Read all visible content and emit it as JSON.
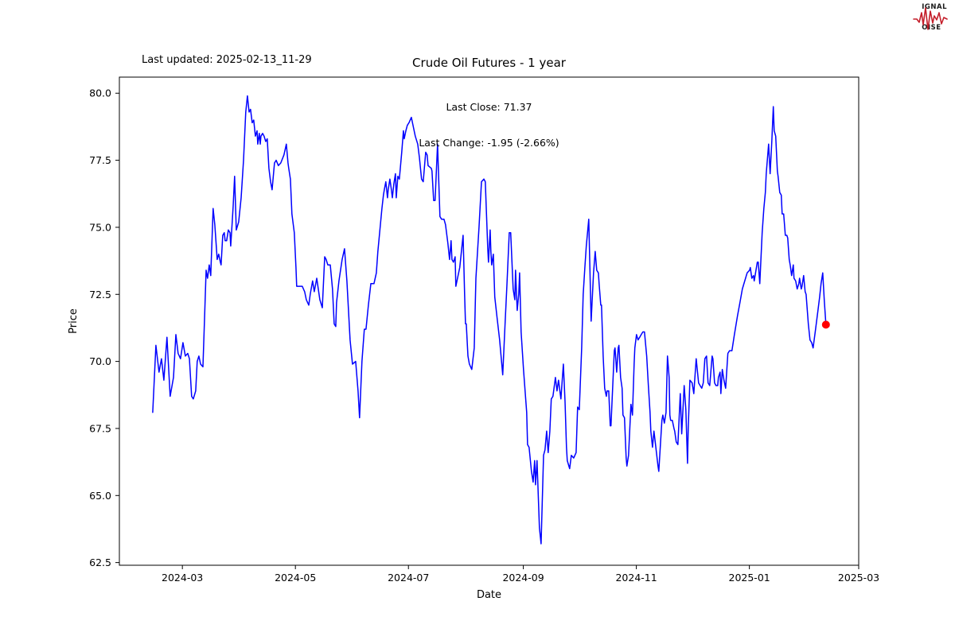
{
  "header": {
    "last_updated": "Last updated: 2025-02-13_11-29",
    "title": "Crude Oil Futures - 1 year",
    "annotation_line1": "Last Close: 71.37",
    "annotation_line2": "Last Change: -1.95 (-2.66%)"
  },
  "logo": {
    "accent_color": "#c41e2a",
    "line1_badge": "S",
    "line1_rest": "IGNAL",
    "line2_badge": "2",
    "line2_rest": "",
    "line3_badge": "N",
    "line3_rest": "OISE"
  },
  "chart_data": {
    "type": "line",
    "title": "Crude Oil Futures - 1 year",
    "xlabel": "Date",
    "ylabel": "Price",
    "line_color": "#0000ff",
    "last_point_marker_color": "#ff0000",
    "last_close": 71.37,
    "last_change": "-1.95 (-2.66%)",
    "series_start_date": "2024-02-14",
    "x_axis_days": [
      -18,
      381
    ],
    "x_tick_days": [
      16,
      77,
      138,
      200,
      261,
      322,
      381
    ],
    "x_tick_labels": [
      "2024-03",
      "2024-05",
      "2024-07",
      "2024-09",
      "2024-11",
      "2025-01",
      "2025-03"
    ],
    "y_ticks": [
      62.5,
      65.0,
      67.5,
      70.0,
      72.5,
      75.0,
      77.5,
      80.0
    ],
    "y_tick_labels": [
      "62.5",
      "65.0",
      "67.5",
      "70.0",
      "72.5",
      "75.0",
      "77.5",
      "80.0"
    ],
    "ylim": [
      62.4,
      80.6
    ],
    "grid": false,
    "legend": "none",
    "points": [
      [
        0.0,
        68.1
      ],
      [
        1.7,
        70.6
      ],
      [
        3.4,
        69.6
      ],
      [
        4.7,
        70.1
      ],
      [
        6.0,
        69.3
      ],
      [
        7.7,
        70.9
      ],
      [
        9.4,
        68.7
      ],
      [
        11.2,
        69.4
      ],
      [
        12.5,
        71.0
      ],
      [
        13.7,
        70.3
      ],
      [
        15.0,
        70.1
      ],
      [
        16.3,
        70.7
      ],
      [
        17.6,
        70.2
      ],
      [
        18.9,
        70.3
      ],
      [
        19.8,
        70.1
      ],
      [
        21.0,
        68.7
      ],
      [
        21.9,
        68.6
      ],
      [
        23.2,
        68.9
      ],
      [
        24.0,
        70.0
      ],
      [
        24.9,
        70.2
      ],
      [
        25.8,
        69.9
      ],
      [
        27.1,
        69.8
      ],
      [
        27.9,
        71.5
      ],
      [
        28.8,
        73.4
      ],
      [
        29.6,
        73.1
      ],
      [
        30.5,
        73.6
      ],
      [
        31.3,
        73.2
      ],
      [
        32.6,
        75.7
      ],
      [
        33.5,
        75.1
      ],
      [
        34.4,
        74.2
      ],
      [
        34.8,
        73.8
      ],
      [
        35.6,
        74.0
      ],
      [
        36.5,
        73.7
      ],
      [
        36.9,
        73.6
      ],
      [
        37.8,
        74.7
      ],
      [
        38.6,
        74.8
      ],
      [
        39.1,
        74.5
      ],
      [
        39.9,
        74.5
      ],
      [
        40.8,
        74.9
      ],
      [
        41.7,
        74.8
      ],
      [
        42.1,
        74.3
      ],
      [
        42.9,
        75.2
      ],
      [
        43.4,
        75.8
      ],
      [
        44.2,
        76.9
      ],
      [
        45.1,
        74.9
      ],
      [
        46.4,
        75.2
      ],
      [
        47.7,
        76.1
      ],
      [
        49.0,
        77.5
      ],
      [
        50.2,
        79.3
      ],
      [
        51.1,
        79.9
      ],
      [
        52.0,
        79.3
      ],
      [
        52.8,
        79.4
      ],
      [
        53.7,
        78.9
      ],
      [
        54.5,
        79.0
      ],
      [
        55.4,
        78.4
      ],
      [
        56.3,
        78.6
      ],
      [
        56.7,
        78.1
      ],
      [
        57.5,
        78.5
      ],
      [
        58.0,
        78.1
      ],
      [
        58.4,
        78.4
      ],
      [
        59.3,
        78.5
      ],
      [
        60.1,
        78.4
      ],
      [
        61.0,
        78.2
      ],
      [
        61.8,
        78.3
      ],
      [
        62.7,
        77.2
      ],
      [
        63.6,
        76.7
      ],
      [
        64.4,
        76.4
      ],
      [
        65.7,
        77.4
      ],
      [
        66.6,
        77.5
      ],
      [
        67.8,
        77.3
      ],
      [
        69.1,
        77.4
      ],
      [
        70.8,
        77.7
      ],
      [
        72.1,
        78.1
      ],
      [
        73.0,
        77.4
      ],
      [
        73.4,
        77.2
      ],
      [
        74.3,
        76.8
      ],
      [
        75.1,
        75.5
      ],
      [
        76.4,
        74.8
      ],
      [
        77.3,
        73.5
      ],
      [
        77.7,
        72.8
      ],
      [
        78.6,
        72.8
      ],
      [
        79.4,
        72.8
      ],
      [
        80.7,
        72.8
      ],
      [
        82.0,
        72.6
      ],
      [
        82.9,
        72.3
      ],
      [
        84.2,
        72.1
      ],
      [
        85.0,
        72.5
      ],
      [
        86.3,
        73.0
      ],
      [
        87.2,
        72.6
      ],
      [
        88.5,
        73.1
      ],
      [
        90.2,
        72.3
      ],
      [
        91.5,
        72.0
      ],
      [
        92.8,
        73.9
      ],
      [
        93.6,
        73.8
      ],
      [
        94.5,
        73.6
      ],
      [
        95.8,
        73.6
      ],
      [
        97.0,
        72.7
      ],
      [
        97.9,
        71.4
      ],
      [
        98.8,
        71.3
      ],
      [
        99.2,
        72.2
      ],
      [
        100.5,
        73.0
      ],
      [
        102.2,
        73.8
      ],
      [
        103.5,
        74.2
      ],
      [
        104.8,
        73.0
      ],
      [
        106.5,
        70.8
      ],
      [
        107.8,
        69.9
      ],
      [
        109.5,
        70.0
      ],
      [
        110.8,
        68.9
      ],
      [
        111.6,
        67.9
      ],
      [
        112.9,
        70.0
      ],
      [
        114.2,
        71.2
      ],
      [
        115.1,
        71.2
      ],
      [
        116.4,
        72.1
      ],
      [
        117.7,
        72.9
      ],
      [
        119.4,
        72.9
      ],
      [
        120.7,
        73.3
      ],
      [
        121.5,
        74.1
      ],
      [
        123.7,
        75.7
      ],
      [
        124.5,
        76.2
      ],
      [
        125.0,
        76.4
      ],
      [
        125.8,
        76.7
      ],
      [
        126.7,
        76.1
      ],
      [
        127.1,
        76.4
      ],
      [
        128.0,
        76.8
      ],
      [
        128.8,
        76.4
      ],
      [
        129.3,
        76.1
      ],
      [
        130.1,
        76.6
      ],
      [
        131.0,
        77.0
      ],
      [
        131.4,
        76.1
      ],
      [
        132.3,
        76.9
      ],
      [
        133.1,
        76.8
      ],
      [
        134.4,
        77.8
      ],
      [
        135.3,
        78.6
      ],
      [
        135.7,
        78.3
      ],
      [
        136.6,
        78.6
      ],
      [
        137.4,
        78.8
      ],
      [
        138.3,
        78.9
      ],
      [
        139.6,
        79.1
      ],
      [
        140.8,
        78.7
      ],
      [
        141.7,
        78.4
      ],
      [
        143.0,
        78.1
      ],
      [
        143.9,
        77.6
      ],
      [
        145.1,
        76.8
      ],
      [
        146.0,
        76.7
      ],
      [
        147.3,
        77.8
      ],
      [
        148.1,
        77.7
      ],
      [
        148.6,
        77.3
      ],
      [
        150.3,
        77.2
      ],
      [
        150.7,
        77.1
      ],
      [
        151.6,
        76.0
      ],
      [
        152.4,
        76.0
      ],
      [
        153.7,
        78.1
      ],
      [
        155.0,
        75.4
      ],
      [
        155.9,
        75.3
      ],
      [
        157.2,
        75.3
      ],
      [
        158.0,
        75.1
      ],
      [
        159.3,
        74.4
      ],
      [
        160.2,
        73.8
      ],
      [
        161.0,
        74.5
      ],
      [
        161.5,
        73.8
      ],
      [
        162.3,
        73.7
      ],
      [
        163.2,
        73.9
      ],
      [
        163.6,
        72.8
      ],
      [
        165.7,
        73.5
      ],
      [
        167.5,
        74.7
      ],
      [
        168.3,
        72.5
      ],
      [
        168.8,
        71.4
      ],
      [
        169.2,
        71.4
      ],
      [
        170.1,
        70.2
      ],
      [
        170.9,
        69.9
      ],
      [
        172.2,
        69.7
      ],
      [
        173.5,
        70.5
      ],
      [
        174.4,
        73.1
      ],
      [
        176.1,
        75.0
      ],
      [
        177.4,
        76.7
      ],
      [
        178.7,
        76.8
      ],
      [
        179.5,
        76.7
      ],
      [
        180.8,
        74.2
      ],
      [
        181.2,
        73.7
      ],
      [
        182.1,
        74.9
      ],
      [
        182.5,
        74.1
      ],
      [
        182.9,
        73.6
      ],
      [
        183.8,
        74.0
      ],
      [
        184.6,
        72.4
      ],
      [
        185.9,
        71.6
      ],
      [
        187.2,
        70.8
      ],
      [
        188.1,
        70.1
      ],
      [
        188.9,
        69.5
      ],
      [
        190.2,
        71.5
      ],
      [
        191.1,
        72.8
      ],
      [
        192.4,
        74.8
      ],
      [
        193.2,
        74.8
      ],
      [
        194.5,
        72.7
      ],
      [
        195.4,
        72.3
      ],
      [
        195.8,
        73.4
      ],
      [
        196.7,
        71.9
      ],
      [
        197.5,
        72.5
      ],
      [
        198.0,
        73.3
      ],
      [
        198.8,
        71.1
      ],
      [
        200.1,
        69.7
      ],
      [
        201.8,
        68.1
      ],
      [
        202.3,
        66.9
      ],
      [
        203.1,
        66.8
      ],
      [
        204.4,
        65.9
      ],
      [
        205.3,
        65.5
      ],
      [
        206.1,
        66.3
      ],
      [
        206.6,
        65.4
      ],
      [
        207.4,
        66.3
      ],
      [
        208.7,
        63.8
      ],
      [
        209.6,
        63.2
      ],
      [
        210.9,
        66.5
      ],
      [
        211.7,
        66.7
      ],
      [
        212.6,
        67.4
      ],
      [
        213.4,
        66.6
      ],
      [
        214.3,
        67.4
      ],
      [
        215.1,
        68.6
      ],
      [
        216.0,
        68.7
      ],
      [
        217.3,
        69.4
      ],
      [
        218.2,
        68.9
      ],
      [
        219.0,
        69.3
      ],
      [
        220.3,
        68.6
      ],
      [
        221.6,
        69.9
      ],
      [
        222.5,
        68.5
      ],
      [
        223.3,
        66.8
      ],
      [
        223.7,
        66.3
      ],
      [
        225.0,
        66.0
      ],
      [
        225.9,
        66.5
      ],
      [
        227.2,
        66.4
      ],
      [
        228.5,
        66.6
      ],
      [
        229.3,
        68.3
      ],
      [
        230.2,
        68.2
      ],
      [
        231.5,
        70.5
      ],
      [
        232.3,
        72.5
      ],
      [
        233.2,
        73.5
      ],
      [
        234.0,
        74.3
      ],
      [
        235.3,
        75.3
      ],
      [
        236.6,
        71.5
      ],
      [
        237.9,
        73.3
      ],
      [
        238.8,
        74.1
      ],
      [
        239.6,
        73.4
      ],
      [
        240.5,
        73.3
      ],
      [
        240.9,
        72.9
      ],
      [
        241.8,
        72.1
      ],
      [
        242.2,
        72.1
      ],
      [
        243.1,
        70.2
      ],
      [
        243.9,
        69.0
      ],
      [
        244.8,
        68.7
      ],
      [
        245.2,
        68.9
      ],
      [
        246.1,
        68.9
      ],
      [
        246.9,
        67.6
      ],
      [
        247.3,
        67.6
      ],
      [
        249.1,
        70.4
      ],
      [
        249.5,
        70.5
      ],
      [
        250.4,
        69.6
      ],
      [
        251.2,
        70.5
      ],
      [
        251.6,
        70.6
      ],
      [
        252.5,
        69.4
      ],
      [
        253.3,
        69.0
      ],
      [
        253.8,
        68.0
      ],
      [
        254.6,
        67.9
      ],
      [
        255.5,
        66.4
      ],
      [
        255.9,
        66.1
      ],
      [
        256.8,
        66.5
      ],
      [
        257.6,
        67.7
      ],
      [
        258.1,
        68.4
      ],
      [
        258.9,
        68.0
      ],
      [
        259.8,
        69.9
      ],
      [
        260.2,
        70.5
      ],
      [
        261.1,
        71.0
      ],
      [
        261.9,
        70.8
      ],
      [
        262.8,
        70.9
      ],
      [
        263.6,
        71.0
      ],
      [
        264.5,
        71.1
      ],
      [
        265.4,
        71.1
      ],
      [
        266.6,
        70.2
      ],
      [
        267.5,
        69.1
      ],
      [
        268.4,
        68.1
      ],
      [
        268.8,
        67.4
      ],
      [
        269.7,
        66.8
      ],
      [
        270.5,
        67.4
      ],
      [
        271.0,
        67.1
      ],
      [
        272.7,
        66.1
      ],
      [
        273.1,
        65.9
      ],
      [
        274.8,
        67.8
      ],
      [
        275.3,
        68.0
      ],
      [
        276.1,
        67.7
      ],
      [
        277.0,
        68.1
      ],
      [
        277.8,
        70.2
      ],
      [
        278.7,
        69.4
      ],
      [
        279.1,
        68.0
      ],
      [
        279.5,
        67.8
      ],
      [
        280.4,
        67.8
      ],
      [
        281.3,
        67.5
      ],
      [
        281.7,
        67.4
      ],
      [
        282.5,
        67.0
      ],
      [
        283.4,
        66.9
      ],
      [
        284.7,
        68.8
      ],
      [
        285.5,
        67.3
      ],
      [
        286.8,
        69.1
      ],
      [
        287.7,
        68.2
      ],
      [
        288.6,
        66.2
      ],
      [
        289.0,
        67.5
      ],
      [
        289.9,
        69.3
      ],
      [
        291.1,
        69.2
      ],
      [
        292.0,
        68.8
      ],
      [
        292.4,
        69.2
      ],
      [
        293.3,
        70.1
      ],
      [
        294.6,
        69.2
      ],
      [
        295.4,
        69.1
      ],
      [
        296.3,
        69.0
      ],
      [
        297.1,
        69.2
      ],
      [
        298.0,
        70.1
      ],
      [
        298.9,
        70.2
      ],
      [
        299.7,
        69.2
      ],
      [
        300.6,
        69.1
      ],
      [
        301.9,
        70.2
      ],
      [
        302.3,
        70.1
      ],
      [
        303.2,
        69.2
      ],
      [
        304.0,
        69.1
      ],
      [
        304.9,
        69.1
      ],
      [
        305.3,
        69.4
      ],
      [
        306.2,
        69.6
      ],
      [
        306.6,
        68.8
      ],
      [
        307.4,
        69.7
      ],
      [
        308.3,
        69.3
      ],
      [
        309.2,
        69.0
      ],
      [
        310.4,
        70.3
      ],
      [
        311.3,
        70.4
      ],
      [
        312.6,
        70.4
      ],
      [
        313.9,
        71.0
      ],
      [
        315.6,
        71.7
      ],
      [
        316.9,
        72.2
      ],
      [
        318.2,
        72.7
      ],
      [
        319.5,
        73.0
      ],
      [
        320.8,
        73.3
      ],
      [
        322.1,
        73.4
      ],
      [
        322.5,
        73.5
      ],
      [
        323.3,
        73.1
      ],
      [
        324.2,
        73.2
      ],
      [
        324.6,
        73.0
      ],
      [
        326.3,
        73.7
      ],
      [
        326.8,
        73.7
      ],
      [
        327.6,
        72.9
      ],
      [
        328.9,
        74.8
      ],
      [
        329.8,
        75.7
      ],
      [
        330.6,
        76.3
      ],
      [
        331.1,
        77.0
      ],
      [
        332.4,
        78.1
      ],
      [
        333.2,
        77.0
      ],
      [
        334.1,
        78.2
      ],
      [
        334.9,
        79.5
      ],
      [
        335.4,
        78.6
      ],
      [
        336.2,
        78.4
      ],
      [
        337.1,
        77.1
      ],
      [
        337.5,
        76.9
      ],
      [
        338.4,
        76.3
      ],
      [
        339.2,
        76.2
      ],
      [
        339.7,
        75.5
      ],
      [
        340.5,
        75.5
      ],
      [
        341.4,
        74.7
      ],
      [
        342.2,
        74.7
      ],
      [
        342.7,
        74.6
      ],
      [
        343.5,
        73.8
      ],
      [
        344.0,
        73.6
      ],
      [
        344.8,
        73.2
      ],
      [
        345.7,
        73.6
      ],
      [
        346.1,
        73.1
      ],
      [
        347.0,
        73.0
      ],
      [
        347.8,
        72.7
      ],
      [
        348.7,
        72.9
      ],
      [
        349.1,
        73.1
      ],
      [
        350.0,
        72.7
      ],
      [
        350.4,
        72.8
      ],
      [
        351.3,
        73.2
      ],
      [
        352.1,
        72.6
      ],
      [
        352.6,
        72.5
      ],
      [
        353.8,
        71.4
      ],
      [
        354.7,
        70.8
      ],
      [
        355.6,
        70.7
      ],
      [
        356.4,
        70.5
      ],
      [
        357.7,
        71.2
      ],
      [
        359.0,
        71.9
      ],
      [
        359.9,
        72.4
      ],
      [
        360.7,
        72.9
      ],
      [
        361.6,
        73.3
      ],
      [
        362.4,
        72.3
      ],
      [
        363.3,
        71.37
      ]
    ]
  }
}
